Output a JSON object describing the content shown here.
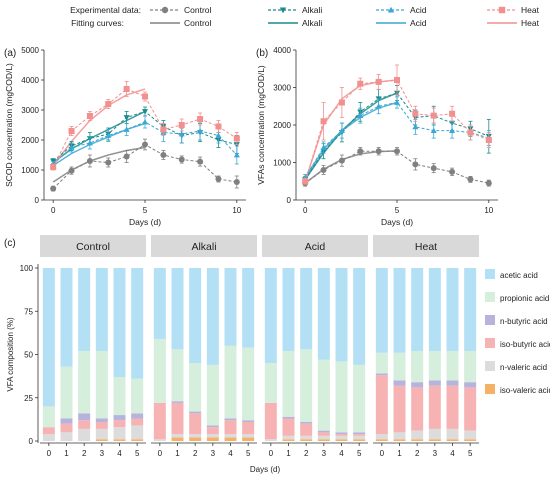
{
  "legend": {
    "experimental_label": "Experimental data:",
    "fitting_label": "Fitting curves:",
    "entries": [
      {
        "name": "Control",
        "color": "#808080",
        "marker": "circle"
      },
      {
        "name": "Alkali",
        "color": "#1a8a8a",
        "marker": "triangle-down"
      },
      {
        "name": "Acid",
        "color": "#3aa7d4",
        "marker": "triangle-up"
      },
      {
        "name": "Heat",
        "color": "#f28f8f",
        "marker": "square"
      }
    ]
  },
  "chart_data": [
    {
      "id": "a",
      "panel_label": "(a)",
      "type": "line",
      "xlabel": "Days (d)",
      "ylabel": "SCOD concentration (mgCOD/L)",
      "xlim": [
        -0.5,
        10.5
      ],
      "ylim": [
        0,
        5000
      ],
      "xticks": [
        0,
        5,
        10
      ],
      "yticks": [
        0,
        1000,
        2000,
        3000,
        4000,
        5000
      ],
      "series": [
        {
          "name": "Control",
          "x": [
            0,
            1,
            2,
            3,
            4,
            5,
            6,
            7,
            8,
            9,
            10
          ],
          "y": [
            380,
            980,
            1300,
            1250,
            1450,
            1850,
            1500,
            1350,
            1280,
            700,
            600
          ],
          "err": [
            80,
            120,
            200,
            150,
            200,
            180,
            150,
            120,
            150,
            100,
            200
          ]
        },
        {
          "name": "Alkali",
          "x": [
            0,
            1,
            2,
            3,
            4,
            5,
            6,
            7,
            8,
            9,
            10
          ],
          "y": [
            1300,
            1800,
            2050,
            2200,
            2750,
            2950,
            2450,
            2150,
            2250,
            2000,
            1850
          ],
          "err": [
            80,
            150,
            200,
            200,
            200,
            150,
            200,
            250,
            300,
            250,
            300
          ]
        },
        {
          "name": "Acid",
          "x": [
            0,
            1,
            2,
            3,
            4,
            5,
            6,
            7,
            8,
            9,
            10
          ],
          "y": [
            1200,
            1750,
            1900,
            2150,
            2350,
            2600,
            2250,
            2200,
            2300,
            2150,
            1500
          ],
          "err": [
            80,
            150,
            200,
            200,
            200,
            200,
            300,
            300,
            300,
            250,
            300
          ]
        },
        {
          "name": "Heat",
          "x": [
            0,
            1,
            2,
            3,
            4,
            5,
            6,
            7,
            8,
            9,
            10
          ],
          "y": [
            1100,
            2300,
            2800,
            3200,
            3700,
            3450,
            2350,
            2500,
            2700,
            2450,
            2050
          ],
          "err": [
            100,
            150,
            150,
            150,
            250,
            150,
            200,
            200,
            200,
            200,
            200
          ]
        }
      ],
      "fits": [
        {
          "name": "Control",
          "x": [
            0,
            1,
            2,
            3,
            4,
            5
          ],
          "y": [
            600,
            1000,
            1300,
            1500,
            1650,
            1750
          ]
        },
        {
          "name": "Alkali",
          "x": [
            0,
            1,
            2,
            3,
            4,
            5
          ],
          "y": [
            1250,
            1700,
            2050,
            2350,
            2650,
            2950
          ]
        },
        {
          "name": "Acid",
          "x": [
            0,
            1,
            2,
            3,
            4,
            5
          ],
          "y": [
            1150,
            1550,
            1850,
            2100,
            2350,
            2550
          ]
        },
        {
          "name": "Heat",
          "x": [
            0,
            1,
            2,
            3,
            4,
            5
          ],
          "y": [
            1150,
            1950,
            2650,
            3150,
            3500,
            3700
          ]
        }
      ]
    },
    {
      "id": "b",
      "panel_label": "(b)",
      "type": "line",
      "xlabel": "Days (d)",
      "ylabel": "VFAs concentration (mgCOD/L)",
      "xlim": [
        -0.5,
        10.5
      ],
      "ylim": [
        0,
        4000
      ],
      "xticks": [
        0,
        5,
        10
      ],
      "yticks": [
        0,
        1000,
        2000,
        3000,
        4000
      ],
      "series": [
        {
          "name": "Control",
          "x": [
            0,
            1,
            2,
            3,
            4,
            5,
            6,
            7,
            8,
            9,
            10
          ],
          "y": [
            450,
            800,
            1050,
            1300,
            1300,
            1300,
            950,
            850,
            750,
            550,
            450
          ],
          "err": [
            80,
            120,
            150,
            100,
            100,
            100,
            150,
            120,
            100,
            80,
            80
          ]
        },
        {
          "name": "Alkali",
          "x": [
            0,
            1,
            2,
            3,
            4,
            5,
            6,
            7,
            8,
            9,
            10
          ],
          "y": [
            550,
            1300,
            1800,
            2350,
            2700,
            2850,
            2200,
            2250,
            2050,
            1900,
            1700
          ],
          "err": [
            80,
            200,
            250,
            250,
            250,
            200,
            200,
            250,
            200,
            200,
            450
          ]
        },
        {
          "name": "Acid",
          "x": [
            0,
            1,
            2,
            3,
            4,
            5,
            6,
            7,
            8,
            9,
            10
          ],
          "y": [
            600,
            1400,
            1850,
            2250,
            2500,
            2600,
            1950,
            1850,
            1850,
            1800,
            1650
          ],
          "err": [
            80,
            150,
            200,
            200,
            200,
            150,
            200,
            200,
            200,
            200,
            200
          ]
        },
        {
          "name": "Heat",
          "x": [
            0,
            1,
            2,
            3,
            4,
            5,
            6,
            7,
            8,
            9,
            10
          ],
          "y": [
            500,
            2100,
            2600,
            3100,
            3150,
            3200,
            2300,
            2250,
            2300,
            1800,
            1600
          ],
          "err": [
            80,
            500,
            400,
            150,
            200,
            400,
            200,
            200,
            200,
            200,
            200
          ]
        }
      ],
      "fits": [
        {
          "name": "Control",
          "x": [
            0,
            1,
            2,
            3,
            4,
            5
          ],
          "y": [
            450,
            820,
            1080,
            1230,
            1290,
            1310
          ]
        },
        {
          "name": "Alkali",
          "x": [
            0,
            1,
            2,
            3,
            4,
            5
          ],
          "y": [
            550,
            1250,
            1850,
            2300,
            2650,
            2850
          ]
        },
        {
          "name": "Acid",
          "x": [
            0,
            1,
            2,
            3,
            4,
            5
          ],
          "y": [
            600,
            1350,
            1850,
            2200,
            2450,
            2600
          ]
        },
        {
          "name": "Heat",
          "x": [
            0,
            1,
            2,
            3,
            4,
            5
          ],
          "y": [
            500,
            2000,
            2700,
            3050,
            3150,
            3200
          ]
        }
      ]
    },
    {
      "id": "c",
      "panel_label": "(c)",
      "type": "bar",
      "stacked": true,
      "xlabel": "Days (d)",
      "ylabel": "VFA composition (%)",
      "ylim": [
        0,
        100
      ],
      "yticks": [
        0,
        25,
        50,
        75,
        100
      ],
      "categories": [
        "0",
        "1",
        "2",
        "3",
        "4",
        "5"
      ],
      "components": [
        {
          "name": "iso-valeric acid",
          "color": "#f5b266"
        },
        {
          "name": "n-valeric acid",
          "color": "#dcdcdc"
        },
        {
          "name": "iso-butyric acid",
          "color": "#f7b3b3"
        },
        {
          "name": "n-butyric acid",
          "color": "#b7b3dc"
        },
        {
          "name": "propionic acid",
          "color": "#d6eedc"
        },
        {
          "name": "acetic acid",
          "color": "#b3e0f5"
        }
      ],
      "legend_order": [
        "acetic acid",
        "propionic acid",
        "n-butyric acid",
        "iso-butyric acid",
        "n-valeric acid",
        "iso-valeric acid"
      ],
      "groups": [
        {
          "label": "Control",
          "bars": [
            [
              0,
              4,
              4,
              0,
              12,
              80
            ],
            [
              0,
              5,
              5,
              3,
              30,
              57
            ],
            [
              0,
              7,
              5,
              4,
              36,
              48
            ],
            [
              1,
              6,
              4,
              2,
              39,
              48
            ],
            [
              1,
              7,
              4,
              3,
              22,
              63
            ],
            [
              1,
              8,
              4,
              3,
              20,
              64
            ]
          ]
        },
        {
          "label": "Alkali",
          "bars": [
            [
              0,
              1,
              21,
              0,
              37,
              41
            ],
            [
              2,
              2,
              18,
              1,
              30,
              47
            ],
            [
              2,
              2,
              12,
              1,
              28,
              55
            ],
            [
              2,
              2,
              4,
              1,
              35,
              56
            ],
            [
              2,
              2,
              8,
              1,
              42,
              45
            ],
            [
              2,
              2,
              7,
              1,
              42,
              46
            ]
          ]
        },
        {
          "label": "Acid",
          "bars": [
            [
              0,
              1,
              21,
              0,
              23,
              55
            ],
            [
              1,
              2,
              10,
              1,
              38,
              48
            ],
            [
              1,
              2,
              7,
              1,
              42,
              47
            ],
            [
              1,
              2,
              2,
              1,
              41,
              53
            ],
            [
              1,
              2,
              1,
              1,
              41,
              54
            ],
            [
              1,
              2,
              1,
              1,
              39,
              56
            ]
          ]
        },
        {
          "label": "Heat",
          "bars": [
            [
              1,
              3,
              34,
              1,
              12,
              49
            ],
            [
              1,
              4,
              27,
              3,
              16,
              49
            ],
            [
              1,
              5,
              25,
              3,
              18,
              48
            ],
            [
              1,
              6,
              25,
              3,
              17,
              48
            ],
            [
              1,
              6,
              25,
              3,
              17,
              48
            ],
            [
              1,
              5,
              25,
              3,
              18,
              48
            ]
          ]
        }
      ]
    }
  ]
}
